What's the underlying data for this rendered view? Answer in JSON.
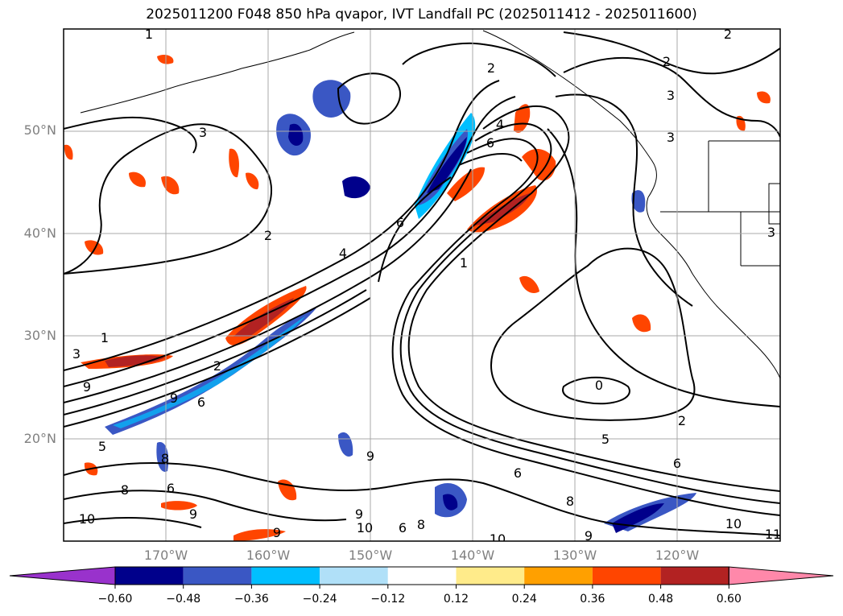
{
  "title": "2025011200 F048 850 hPa qvapor, IVT Landfall PC (2025011412 - 2025011600)",
  "map": {
    "lat_labels": [
      "50°N",
      "40°N",
      "30°N",
      "20°N"
    ],
    "lon_labels": [
      "170°W",
      "160°W",
      "150°W",
      "140°W",
      "130°W",
      "120°W"
    ],
    "extent": {
      "lon_min": -180,
      "lon_max": -110,
      "lat_min": 10,
      "lat_max": 60
    },
    "contour_color": "#000000",
    "gridline_color": "#a9a9a9",
    "contour_labels": [
      "1",
      "2",
      "3",
      "3",
      "2",
      "3",
      "3",
      "2",
      "6",
      "4",
      "1",
      "6",
      "1",
      "3",
      "2",
      "9",
      "9",
      "9",
      "6",
      "5",
      "8",
      "6",
      "9",
      "8",
      "9",
      "9",
      "10",
      "10",
      "6",
      "8",
      "10",
      "0",
      "2",
      "5",
      "6",
      "8",
      "9",
      "10",
      "11",
      "4",
      "6",
      "2"
    ]
  },
  "colorbar": {
    "ticks": [
      "−0.60",
      "−0.48",
      "−0.36",
      "−0.24",
      "−0.12",
      "0.12",
      "0.24",
      "0.36",
      "0.48",
      "0.60"
    ],
    "colors": [
      "#9932cc",
      "#00008b",
      "#3a57c4",
      "#00bfff",
      "#b0e0f8",
      "#ffffff",
      "#ffeb8a",
      "#ffa000",
      "#ff4500",
      "#b22222",
      "#ff88aa"
    ]
  }
}
